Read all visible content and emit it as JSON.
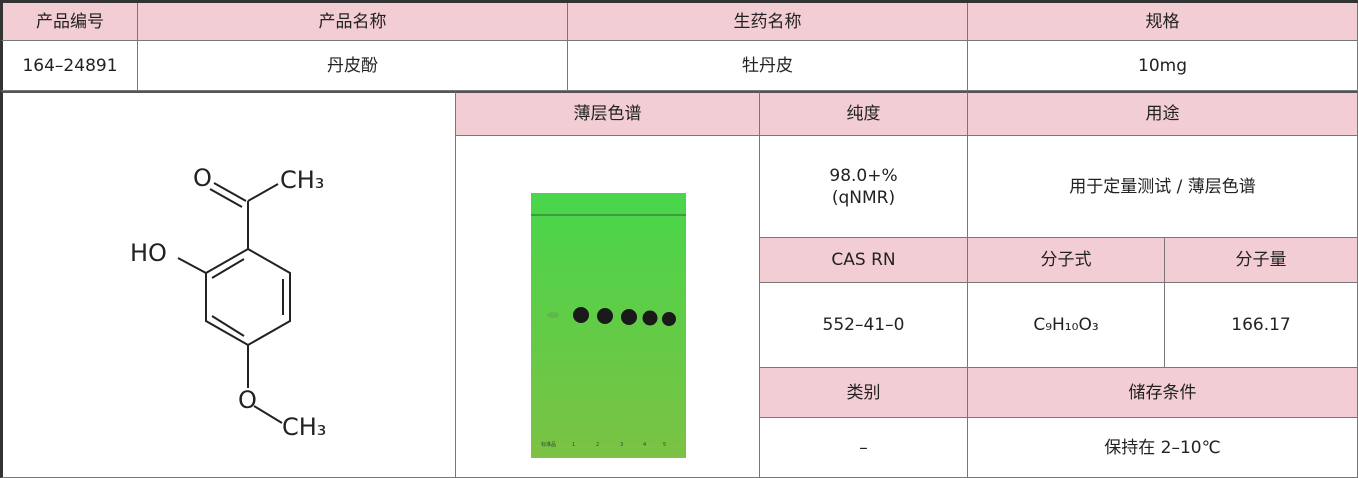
{
  "header": {
    "product_code": "产品编号",
    "product_name": "产品名称",
    "crude_drug": "生药名称",
    "spec": "规格"
  },
  "row": {
    "product_code": "164–24891",
    "product_name": "丹皮酚",
    "crude_drug": "牡丹皮",
    "spec": "10mg"
  },
  "details": {
    "tlc_header": "薄层色谱",
    "purity_header": "纯度",
    "purity": "98.0+%\n(qNMR)",
    "use_header": "用途",
    "use": "用于定量测试 / 薄层色谱",
    "cas_header": "CAS RN",
    "cas": "552–41–0",
    "formula_header": "分子式",
    "formula": "C₉H₁₀O₃",
    "mw_header": "分子量",
    "mw": "166.17",
    "category_header": "类别",
    "category": "–",
    "storage_header": "储存条件",
    "storage": "保持在 2–10℃"
  },
  "structure": {
    "labels": [
      "O",
      "CH₃",
      "HO",
      "O",
      "CH₃"
    ]
  },
  "tlc": {
    "lane_labels": [
      "标准品",
      "1",
      "2",
      "3",
      "4",
      "5"
    ]
  }
}
